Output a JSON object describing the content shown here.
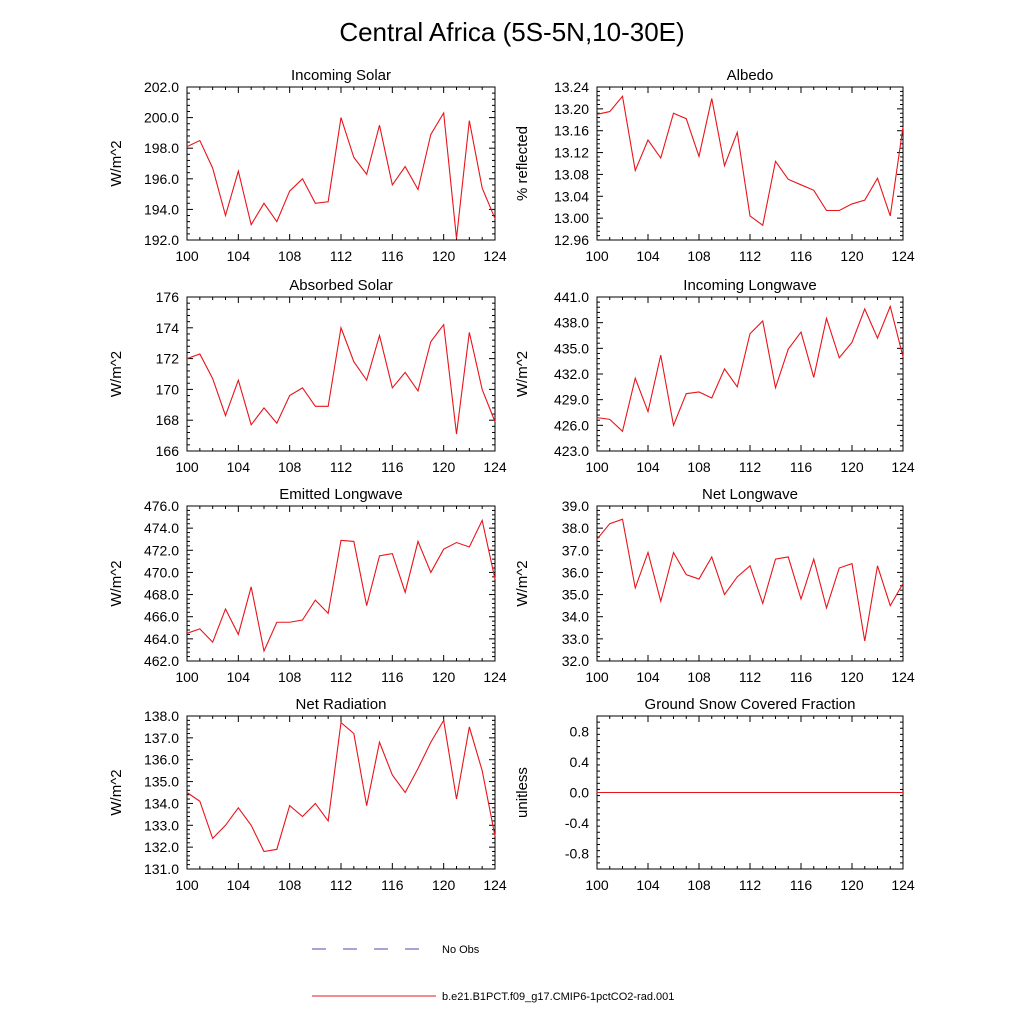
{
  "title": "Central Africa (5S-5N,10-30E)",
  "series_color": "#e8141b",
  "noobs_color": "#4c4ca8",
  "legend": [
    {
      "label": "No Obs",
      "style": "dashed",
      "color": "#4c4ca8"
    },
    {
      "label": "b.e21.B1PCT.f09_g17.CMIP6-1pctCO2-rad.001",
      "style": "solid",
      "color": "#e8141b"
    }
  ],
  "chart_data": [
    {
      "type": "line",
      "title": "Incoming Solar",
      "ylabel": "W/m^2",
      "xlim": [
        100,
        124
      ],
      "ylim": [
        192,
        202
      ],
      "xticks": [
        "100",
        "104",
        "108",
        "112",
        "116",
        "120",
        "124"
      ],
      "yticks": [
        "192.0",
        "194.0",
        "196.0",
        "198.0",
        "200.0",
        "202.0"
      ],
      "x": [
        100,
        101,
        102,
        103,
        104,
        105,
        106,
        107,
        108,
        109,
        110,
        111,
        112,
        113,
        114,
        115,
        116,
        117,
        118,
        119,
        120,
        121,
        122,
        123,
        124
      ],
      "series": [
        {
          "values": [
            198.1,
            198.5,
            196.7,
            193.6,
            196.5,
            193.0,
            194.4,
            193.2,
            195.2,
            196.0,
            194.4,
            194.5,
            200.0,
            197.4,
            196.3,
            199.5,
            195.6,
            196.8,
            195.3,
            198.9,
            200.3,
            192.1,
            199.8,
            195.4,
            193.4
          ]
        }
      ]
    },
    {
      "type": "line",
      "title": "Albedo",
      "ylabel": "% reflected",
      "xlim": [
        100,
        124
      ],
      "ylim": [
        12.96,
        13.24
      ],
      "xticks": [
        "100",
        "104",
        "108",
        "112",
        "116",
        "120",
        "124"
      ],
      "yticks": [
        "12.96",
        "13.00",
        "13.04",
        "13.08",
        "13.12",
        "13.16",
        "13.20",
        "13.24"
      ],
      "x": [
        100,
        101,
        102,
        103,
        104,
        105,
        106,
        107,
        108,
        109,
        110,
        111,
        112,
        113,
        114,
        115,
        116,
        117,
        118,
        119,
        120,
        121,
        122,
        123,
        124
      ],
      "series": [
        {
          "values": [
            13.19,
            13.195,
            13.223,
            13.087,
            13.143,
            13.11,
            13.192,
            13.182,
            13.113,
            13.219,
            13.096,
            13.157,
            13.004,
            12.987,
            13.104,
            13.071,
            13.061,
            13.051,
            13.014,
            13.014,
            13.026,
            13.033,
            13.073,
            13.004,
            13.167
          ]
        }
      ]
    },
    {
      "type": "line",
      "title": "Absorbed Solar",
      "ylabel": "W/m^2",
      "xlim": [
        100,
        124
      ],
      "ylim": [
        166,
        176
      ],
      "xticks": [
        "100",
        "104",
        "108",
        "112",
        "116",
        "120",
        "124"
      ],
      "yticks": [
        "166",
        "168",
        "170",
        "172",
        "174",
        "176"
      ],
      "x": [
        100,
        101,
        102,
        103,
        104,
        105,
        106,
        107,
        108,
        109,
        110,
        111,
        112,
        113,
        114,
        115,
        116,
        117,
        118,
        119,
        120,
        121,
        122,
        123,
        124
      ],
      "series": [
        {
          "values": [
            172.0,
            172.3,
            170.7,
            168.3,
            170.6,
            167.7,
            168.8,
            167.8,
            169.6,
            170.1,
            168.9,
            168.9,
            174.0,
            171.8,
            170.6,
            173.5,
            170.1,
            171.1,
            169.9,
            173.1,
            174.2,
            167.1,
            173.7,
            170.0,
            167.9
          ]
        }
      ]
    },
    {
      "type": "line",
      "title": "Incoming Longwave",
      "ylabel": "W/m^2",
      "xlim": [
        100,
        124
      ],
      "ylim": [
        423,
        441
      ],
      "xticks": [
        "100",
        "104",
        "108",
        "112",
        "116",
        "120",
        "124"
      ],
      "yticks": [
        "423.0",
        "426.0",
        "429.0",
        "432.0",
        "435.0",
        "438.0",
        "441.0"
      ],
      "x": [
        100,
        101,
        102,
        103,
        104,
        105,
        106,
        107,
        108,
        109,
        110,
        111,
        112,
        113,
        114,
        115,
        116,
        117,
        118,
        119,
        120,
        121,
        122,
        123,
        124
      ],
      "series": [
        {
          "values": [
            426.9,
            426.7,
            425.3,
            431.5,
            427.6,
            434.2,
            426.0,
            429.7,
            429.9,
            429.2,
            432.6,
            430.5,
            436.7,
            438.2,
            430.4,
            434.9,
            436.9,
            431.6,
            438.5,
            433.9,
            435.7,
            439.6,
            436.2,
            439.9,
            434.0
          ]
        }
      ]
    },
    {
      "type": "line",
      "title": "Emitted Longwave",
      "ylabel": "W/m^2",
      "xlim": [
        100,
        124
      ],
      "ylim": [
        462,
        476
      ],
      "xticks": [
        "100",
        "104",
        "108",
        "112",
        "116",
        "120",
        "124"
      ],
      "yticks": [
        "462.0",
        "464.0",
        "466.0",
        "468.0",
        "470.0",
        "472.0",
        "474.0",
        "476.0"
      ],
      "x": [
        100,
        101,
        102,
        103,
        104,
        105,
        106,
        107,
        108,
        109,
        110,
        111,
        112,
        113,
        114,
        115,
        116,
        117,
        118,
        119,
        120,
        121,
        122,
        123,
        124
      ],
      "series": [
        {
          "values": [
            464.5,
            464.9,
            463.7,
            466.7,
            464.4,
            468.7,
            462.9,
            465.5,
            465.5,
            465.7,
            467.5,
            466.3,
            472.9,
            472.8,
            467.0,
            471.5,
            471.7,
            468.2,
            472.8,
            470.0,
            472.1,
            472.7,
            472.3,
            474.7,
            469.4
          ]
        }
      ]
    },
    {
      "type": "line",
      "title": "Net Longwave",
      "ylabel": "W/m^2",
      "xlim": [
        100,
        124
      ],
      "ylim": [
        32,
        39
      ],
      "xticks": [
        "100",
        "104",
        "108",
        "112",
        "116",
        "120",
        "124"
      ],
      "yticks": [
        "32.0",
        "33.0",
        "34.0",
        "35.0",
        "36.0",
        "37.0",
        "38.0",
        "39.0"
      ],
      "x": [
        100,
        101,
        102,
        103,
        104,
        105,
        106,
        107,
        108,
        109,
        110,
        111,
        112,
        113,
        114,
        115,
        116,
        117,
        118,
        119,
        120,
        121,
        122,
        123,
        124
      ],
      "series": [
        {
          "values": [
            37.5,
            38.2,
            38.4,
            35.3,
            36.9,
            34.7,
            36.9,
            35.9,
            35.7,
            36.7,
            35.0,
            35.8,
            36.3,
            34.6,
            36.6,
            36.7,
            34.8,
            36.6,
            34.4,
            36.2,
            36.4,
            32.9,
            36.3,
            34.5,
            35.5
          ]
        }
      ]
    },
    {
      "type": "line",
      "title": "Net Radiation",
      "ylabel": "W/m^2",
      "xlim": [
        100,
        124
      ],
      "ylim": [
        131,
        138
      ],
      "xticks": [
        "100",
        "104",
        "108",
        "112",
        "116",
        "120",
        "124"
      ],
      "yticks": [
        "131.0",
        "132.0",
        "133.0",
        "134.0",
        "135.0",
        "136.0",
        "137.0",
        "138.0"
      ],
      "x": [
        100,
        101,
        102,
        103,
        104,
        105,
        106,
        107,
        108,
        109,
        110,
        111,
        112,
        113,
        114,
        115,
        116,
        117,
        118,
        119,
        120,
        121,
        122,
        123,
        124
      ],
      "series": [
        {
          "values": [
            134.5,
            134.1,
            132.4,
            133.0,
            133.8,
            133.0,
            131.8,
            131.9,
            133.9,
            133.4,
            134.0,
            133.2,
            137.7,
            137.2,
            133.9,
            136.8,
            135.3,
            134.5,
            135.6,
            136.8,
            137.8,
            134.2,
            137.5,
            135.5,
            132.5
          ]
        }
      ]
    },
    {
      "type": "line",
      "title": "Ground Snow Covered Fraction",
      "ylabel": "unitless",
      "xlim": [
        100,
        124
      ],
      "ylim": [
        -1,
        1
      ],
      "xticks": [
        "100",
        "104",
        "108",
        "112",
        "116",
        "120",
        "124"
      ],
      "yticks": [
        "-0.8",
        "-0.4",
        "0.0",
        "0.4",
        "0.8"
      ],
      "ytick_values": [
        -0.8,
        -0.4,
        0.0,
        0.4,
        0.8
      ],
      "x": [
        100,
        124
      ],
      "series": [
        {
          "values": [
            0.0,
            0.0
          ]
        }
      ]
    }
  ]
}
